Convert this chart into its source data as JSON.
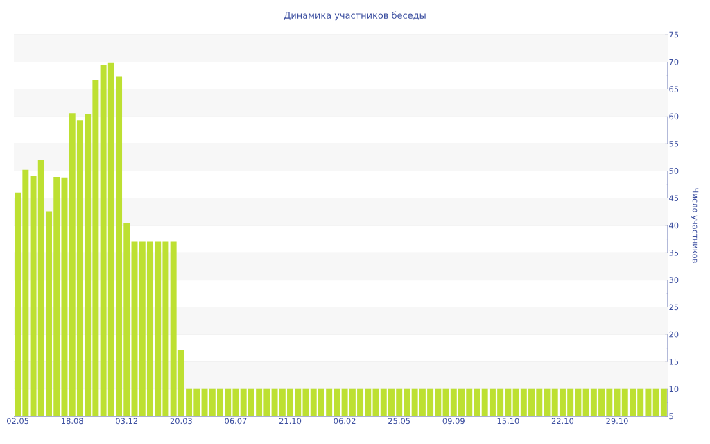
{
  "chart_data": {
    "type": "bar",
    "title": "Динамика участников беседы",
    "ylabel": "Число участников",
    "categories": [
      "02.05",
      null,
      null,
      null,
      null,
      null,
      null,
      "18.08",
      null,
      null,
      null,
      null,
      null,
      null,
      "03.12",
      null,
      null,
      null,
      null,
      null,
      null,
      "20.03",
      null,
      null,
      null,
      null,
      null,
      null,
      "06.07",
      null,
      null,
      null,
      null,
      null,
      null,
      "21.10",
      null,
      null,
      null,
      null,
      null,
      null,
      "06.02",
      null,
      null,
      null,
      null,
      null,
      null,
      "25.05",
      null,
      null,
      null,
      null,
      null,
      null,
      "09.09",
      null,
      null,
      null,
      null,
      null,
      null,
      "15.10",
      null,
      null,
      null,
      null,
      null,
      null,
      "22.10",
      null,
      null,
      null,
      null,
      null,
      null,
      "29.10",
      null,
      null,
      null,
      null,
      null,
      null
    ],
    "values": [
      46,
      50.2,
      49.1,
      52,
      42.6,
      48.9,
      48.8,
      60.6,
      59.3,
      60.5,
      66.6,
      69.4,
      69.8,
      67.3,
      40.5,
      37,
      37,
      37,
      37,
      37,
      37,
      17.1,
      10,
      10,
      10,
      10,
      10,
      10,
      10,
      10,
      10,
      10,
      10,
      10,
      10,
      10,
      10,
      10,
      10,
      10,
      10,
      10,
      10,
      10,
      10,
      10,
      10,
      10,
      10,
      10,
      10,
      10,
      10,
      10,
      10,
      10,
      10,
      10,
      10,
      10,
      10,
      10,
      10,
      10,
      10,
      10,
      10,
      10,
      10,
      10,
      10,
      10,
      10,
      10,
      10,
      10,
      10,
      10,
      10,
      10,
      10,
      10,
      10,
      10
    ],
    "color": "#bde032",
    "ylim": [
      5,
      75
    ],
    "yticks": [
      5,
      10,
      15,
      20,
      25,
      30,
      35,
      40,
      45,
      50,
      55,
      60,
      65,
      70,
      75
    ],
    "grid": "y"
  }
}
